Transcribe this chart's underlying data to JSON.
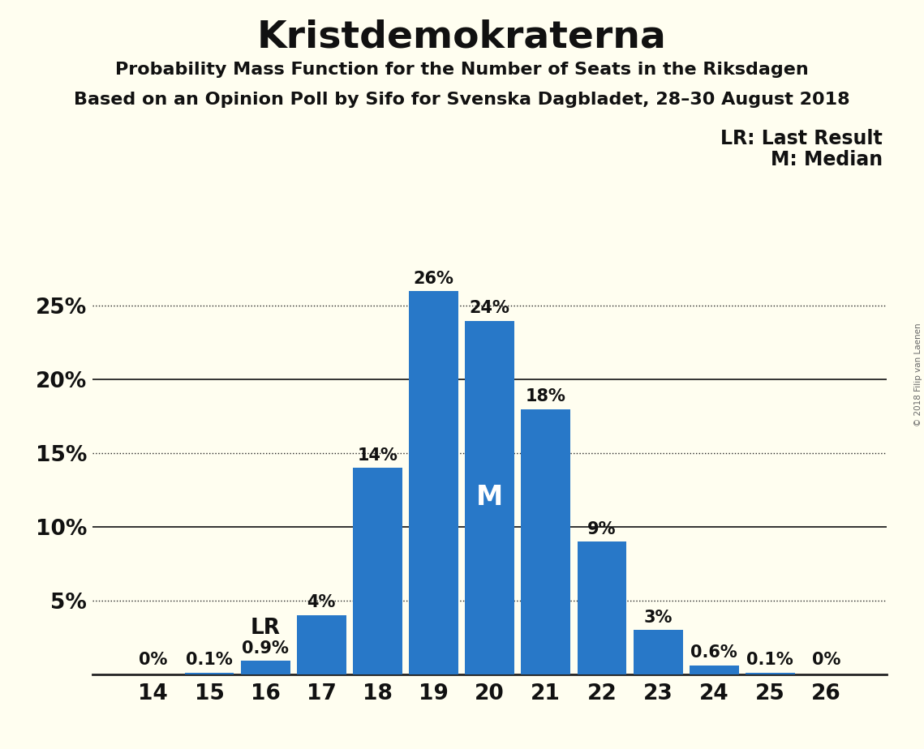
{
  "title": "Kristdemokraterna",
  "subtitle1": "Probability Mass Function for the Number of Seats in the Riksdagen",
  "subtitle2": "Based on an Opinion Poll by Sifo for Svenska Dagbladet, 28–30 August 2018",
  "copyright": "© 2018 Filip van Laenen",
  "categories": [
    14,
    15,
    16,
    17,
    18,
    19,
    20,
    21,
    22,
    23,
    24,
    25,
    26
  ],
  "values": [
    0.0,
    0.1,
    0.9,
    4.0,
    14.0,
    26.0,
    24.0,
    18.0,
    9.0,
    3.0,
    0.6,
    0.1,
    0.0
  ],
  "labels": [
    "0%",
    "0.1%",
    "0.9%",
    "4%",
    "14%",
    "26%",
    "24%",
    "18%",
    "9%",
    "3%",
    "0.6%",
    "0.1%",
    "0%"
  ],
  "bar_color": "#2878C8",
  "background_color": "#FFFEF0",
  "text_color": "#111111",
  "grid_color": "#222222",
  "lr_seat": 16,
  "median_seat": 20,
  "lr_label": "LR",
  "median_label": "M",
  "legend_lr": "LR: Last Result",
  "legend_m": "M: Median",
  "ytick_labels": [
    "",
    "5%",
    "10%",
    "15%",
    "20%",
    "25%"
  ],
  "ytick_values": [
    0,
    5,
    10,
    15,
    20,
    25
  ],
  "ylim": [
    0,
    29.5
  ],
  "dotted_lines": [
    5,
    15,
    25
  ],
  "solid_lines": [
    10,
    20
  ],
  "title_fontsize": 34,
  "subtitle_fontsize": 16,
  "axis_fontsize": 19,
  "bar_label_fontsize": 15,
  "legend_fontsize": 17,
  "annotation_fontsize": 19,
  "median_label_fontsize": 24
}
